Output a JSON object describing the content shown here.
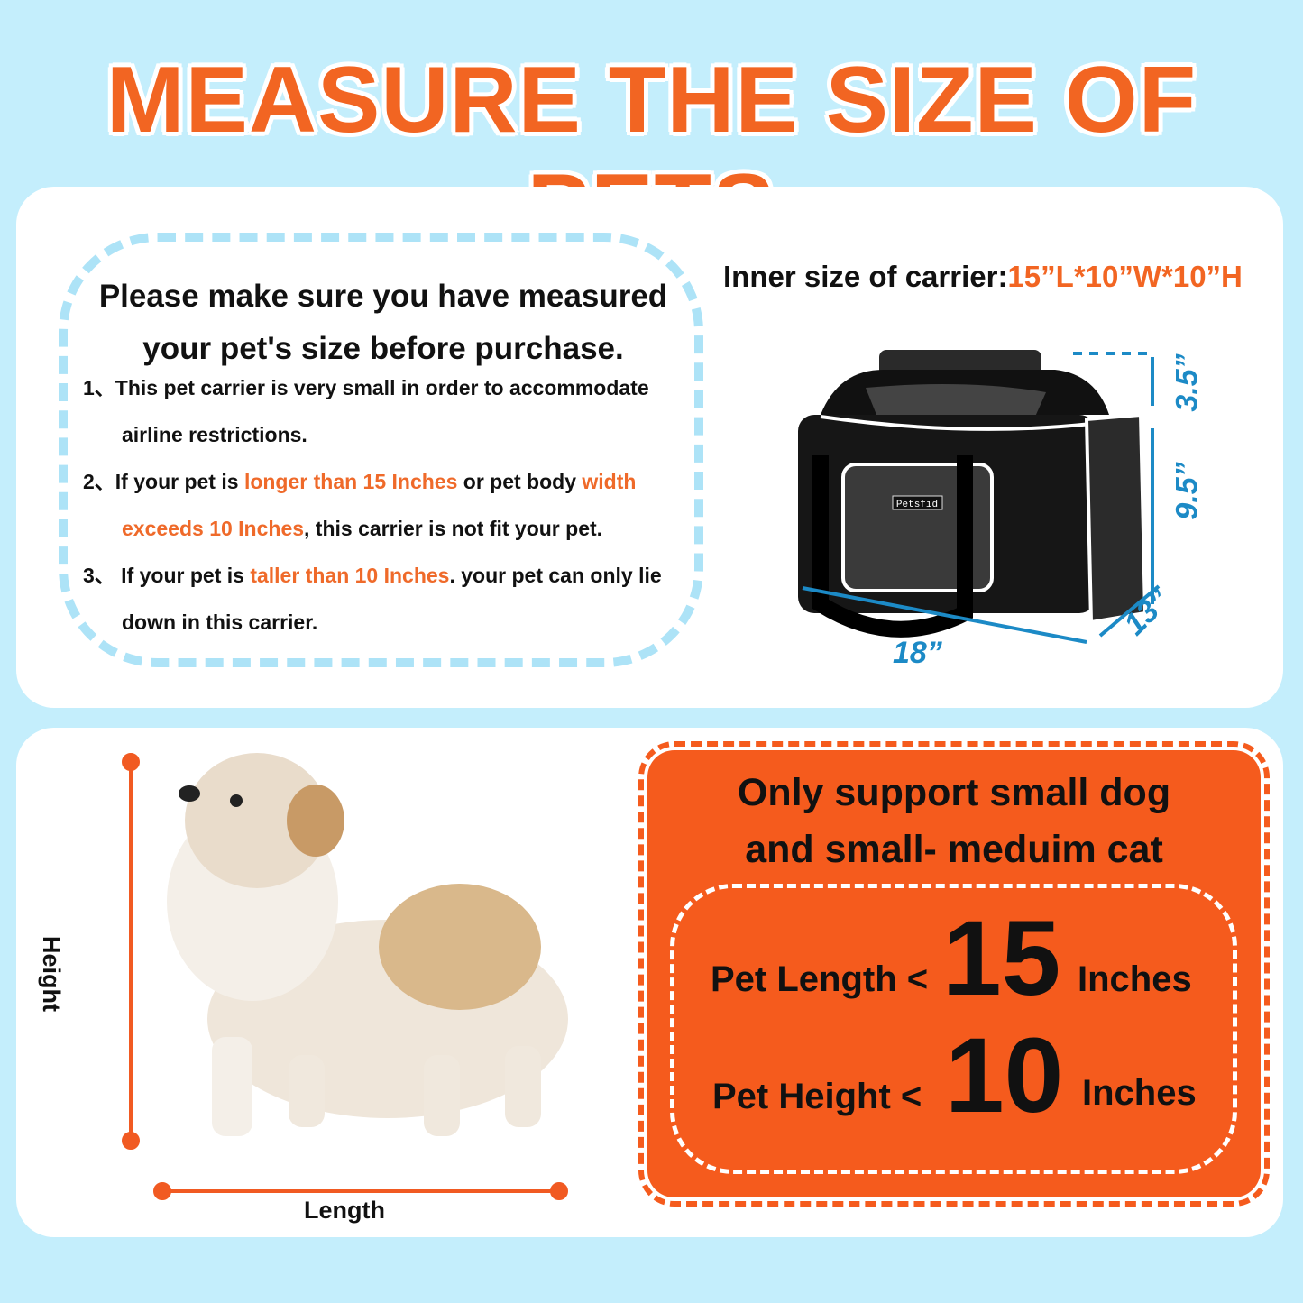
{
  "title": "MEASURE THE SIZE OF PETS",
  "colors": {
    "background": "#c4eefc",
    "accent_orange": "#f26522",
    "dimension_blue": "#1c8ac6",
    "dash_blue": "#ade3f7"
  },
  "note": {
    "heading_line1": "Please make sure you have measured",
    "heading_line2": "your pet's size before purchase.",
    "items": [
      {
        "num": "1、",
        "a": "This pet carrier is very small in order  to accommodate",
        "b": "airline restrictions."
      },
      {
        "num": "2、",
        "a1": "If your pet is ",
        "h1": "longer than 15 Inches",
        "a2": " or pet body ",
        "h2": "width",
        "h3": "exceeds 10 Inches",
        "a3": ", this carrier is not fit your pet."
      },
      {
        "num": "3、",
        "a1": " If your pet is ",
        "h1": "taller than 10 Inches",
        "a2": ". your pet can only lie",
        "b": "down in this carrier."
      }
    ]
  },
  "carrier": {
    "label": "Inner size of carrier:",
    "size": "15”L*10”W*10”H",
    "brand": "Petsfid",
    "dims": {
      "top": "3.5”",
      "height": "9.5”",
      "depth": "13”",
      "length": "18”"
    }
  },
  "pet": {
    "height_label": "Height",
    "length_label": "Length"
  },
  "support": {
    "line1": "Only support small dog",
    "line2": "and small- meduim cat",
    "length_label": "Pet Length <",
    "length_value": "15",
    "length_unit": "Inches",
    "height_label": "Pet Height <",
    "height_value": "10",
    "height_unit": "Inches"
  }
}
